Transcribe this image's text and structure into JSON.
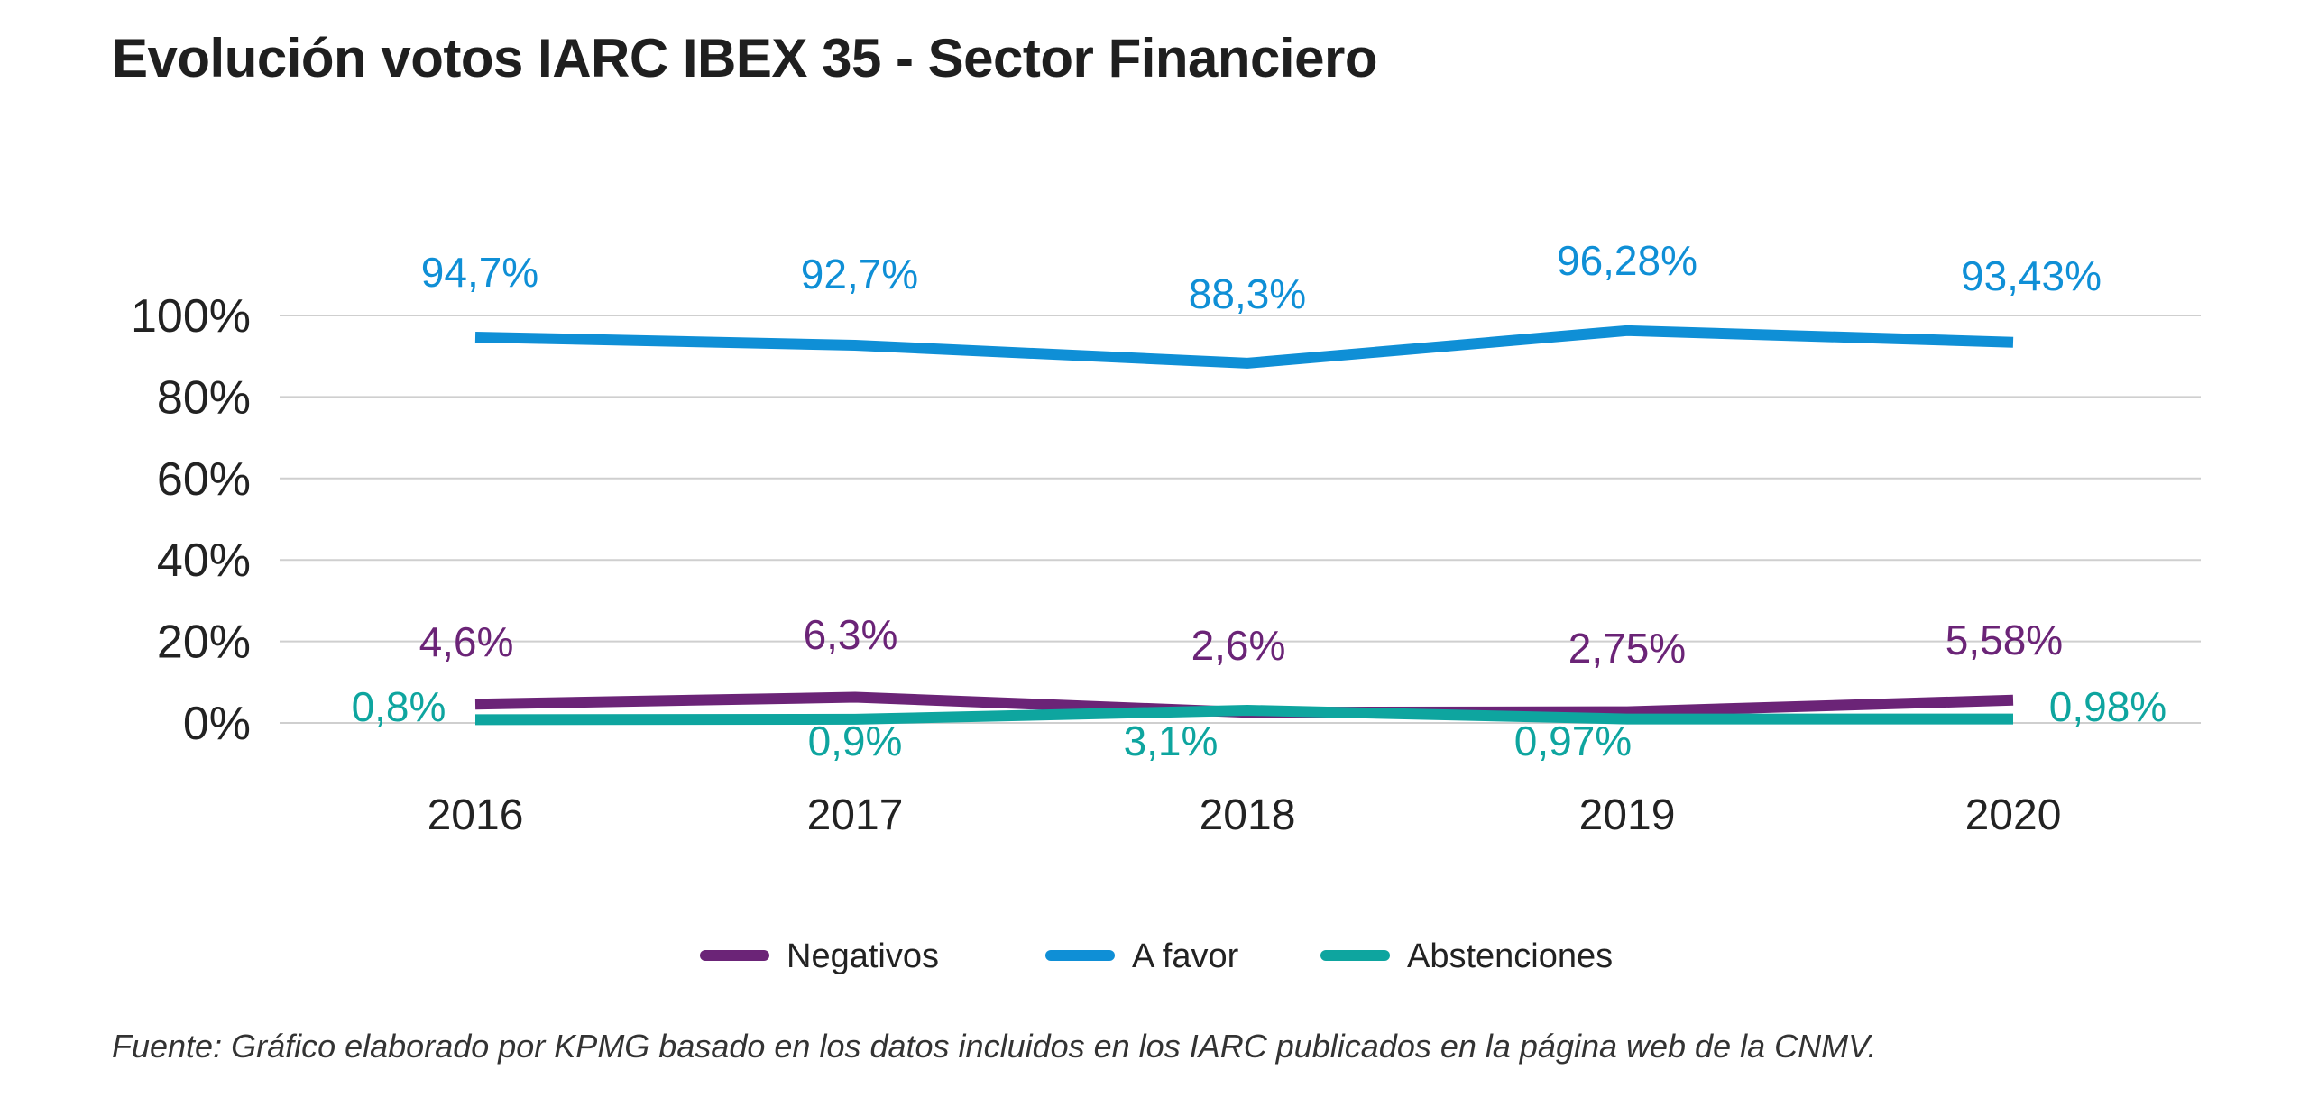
{
  "chart_data": {
    "type": "line",
    "title": "Evolución votos IARC IBEX 35 - Sector Financiero",
    "source": "Fuente: Gráfico elaborado por KPMG basado en los datos incluidos en los IARC publicados en la página web de la CNMV.",
    "x": [
      "2016",
      "2017",
      "2018",
      "2019",
      "2020"
    ],
    "y_ticks": [
      "0%",
      "20%",
      "40%",
      "60%",
      "80%",
      "100%"
    ],
    "ylim": [
      0,
      100
    ],
    "grid": true,
    "legend_position": "bottom",
    "series": [
      {
        "name": "Negativos",
        "color": "#6b2477",
        "values": [
          4.6,
          6.3,
          2.6,
          2.75,
          5.58
        ],
        "labels": [
          "4,6%",
          "6,3%",
          "2,6%",
          "2,75%",
          "5,58%"
        ]
      },
      {
        "name": "A favor",
        "color": "#0f8fd6",
        "values": [
          94.7,
          92.7,
          88.3,
          96.28,
          93.43
        ],
        "labels": [
          "94,7%",
          "92,7%",
          "88,3%",
          "96,28%",
          "93,43%"
        ]
      },
      {
        "name": "Abstenciones",
        "color": "#0ea59f",
        "values": [
          0.8,
          0.9,
          3.1,
          0.97,
          0.98
        ],
        "labels": [
          "0,8%",
          "0,9%",
          "3,1%",
          "0,97%",
          "0,98%"
        ]
      }
    ]
  }
}
